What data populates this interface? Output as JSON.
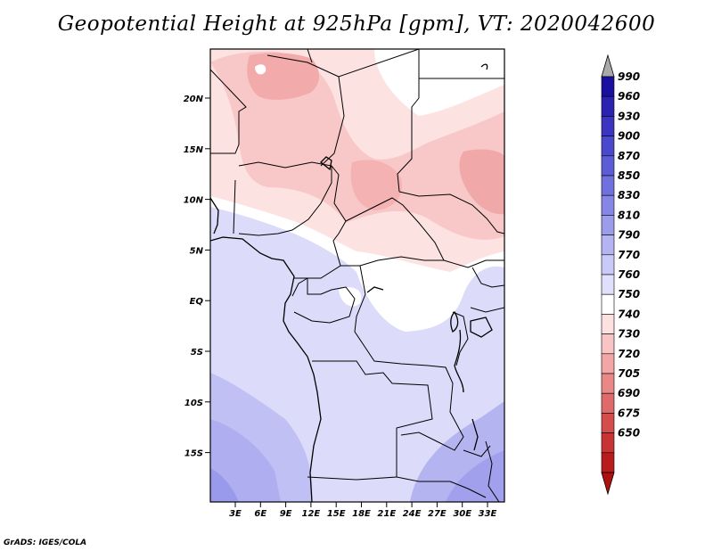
{
  "title": "Geopotential Height at 925hPa [gpm], VT: 2020042600",
  "credit": "GrADS: IGES/COLA",
  "map": {
    "lat_ticks": [
      "20N",
      "15N",
      "10N",
      "5N",
      "EQ",
      "5S",
      "10S",
      "15S"
    ],
    "lon_ticks": [
      "3E",
      "6E",
      "9E",
      "12E",
      "15E",
      "18E",
      "21E",
      "24E",
      "27E",
      "30E",
      "33E"
    ]
  },
  "colorbar": {
    "labels": [
      "990",
      "960",
      "930",
      "900",
      "870",
      "850",
      "830",
      "810",
      "790",
      "770",
      "760",
      "750",
      "740",
      "730",
      "720",
      "705",
      "690",
      "675",
      "650"
    ],
    "colors": [
      "#1a0f9e",
      "#2a22b0",
      "#3a34c0",
      "#4a48cc",
      "#5c5cd6",
      "#7070de",
      "#8686e6",
      "#9c9cec",
      "#b4b4f2",
      "#cacaf8",
      "#e0e0fc",
      "#ffffff",
      "#fde0e0",
      "#f8c4c4",
      "#f2a6a6",
      "#ea8888",
      "#e06a6a",
      "#d44c4c",
      "#c83434",
      "#b81c1c"
    ],
    "top_arrow_color": "#aaaaaa",
    "bottom_arrow_color": "#b01010"
  }
}
